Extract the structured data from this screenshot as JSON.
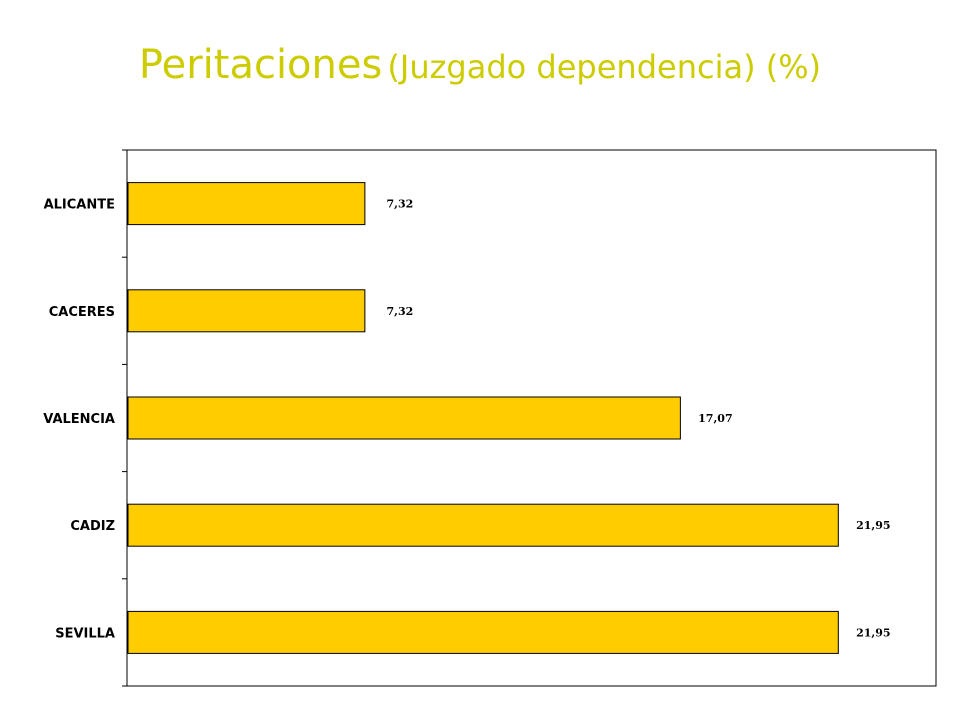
{
  "title": {
    "main": "Peritaciones",
    "sub": "(Juzgado dependencia) (%)"
  },
  "colors": {
    "title": "#cccc00",
    "bar_fill": "#ffcc00",
    "bar_stroke": "#000000",
    "axis": "#000000"
  },
  "chart_data": {
    "type": "bar",
    "orientation": "horizontal",
    "categories": [
      "ALICANTE",
      "CACERES",
      "VALENCIA",
      "CADIZ",
      "SEVILLA"
    ],
    "values": [
      7.32,
      7.32,
      17.07,
      21.95,
      21.95
    ],
    "value_labels": [
      "7,32",
      "7,32",
      "17,07",
      "21,95",
      "21,95"
    ],
    "title": "Peritaciones (Juzgado dependencia) (%)",
    "xlabel": "",
    "ylabel": "",
    "xlim": [
      0,
      25
    ],
    "grid": false,
    "legend": "none"
  }
}
